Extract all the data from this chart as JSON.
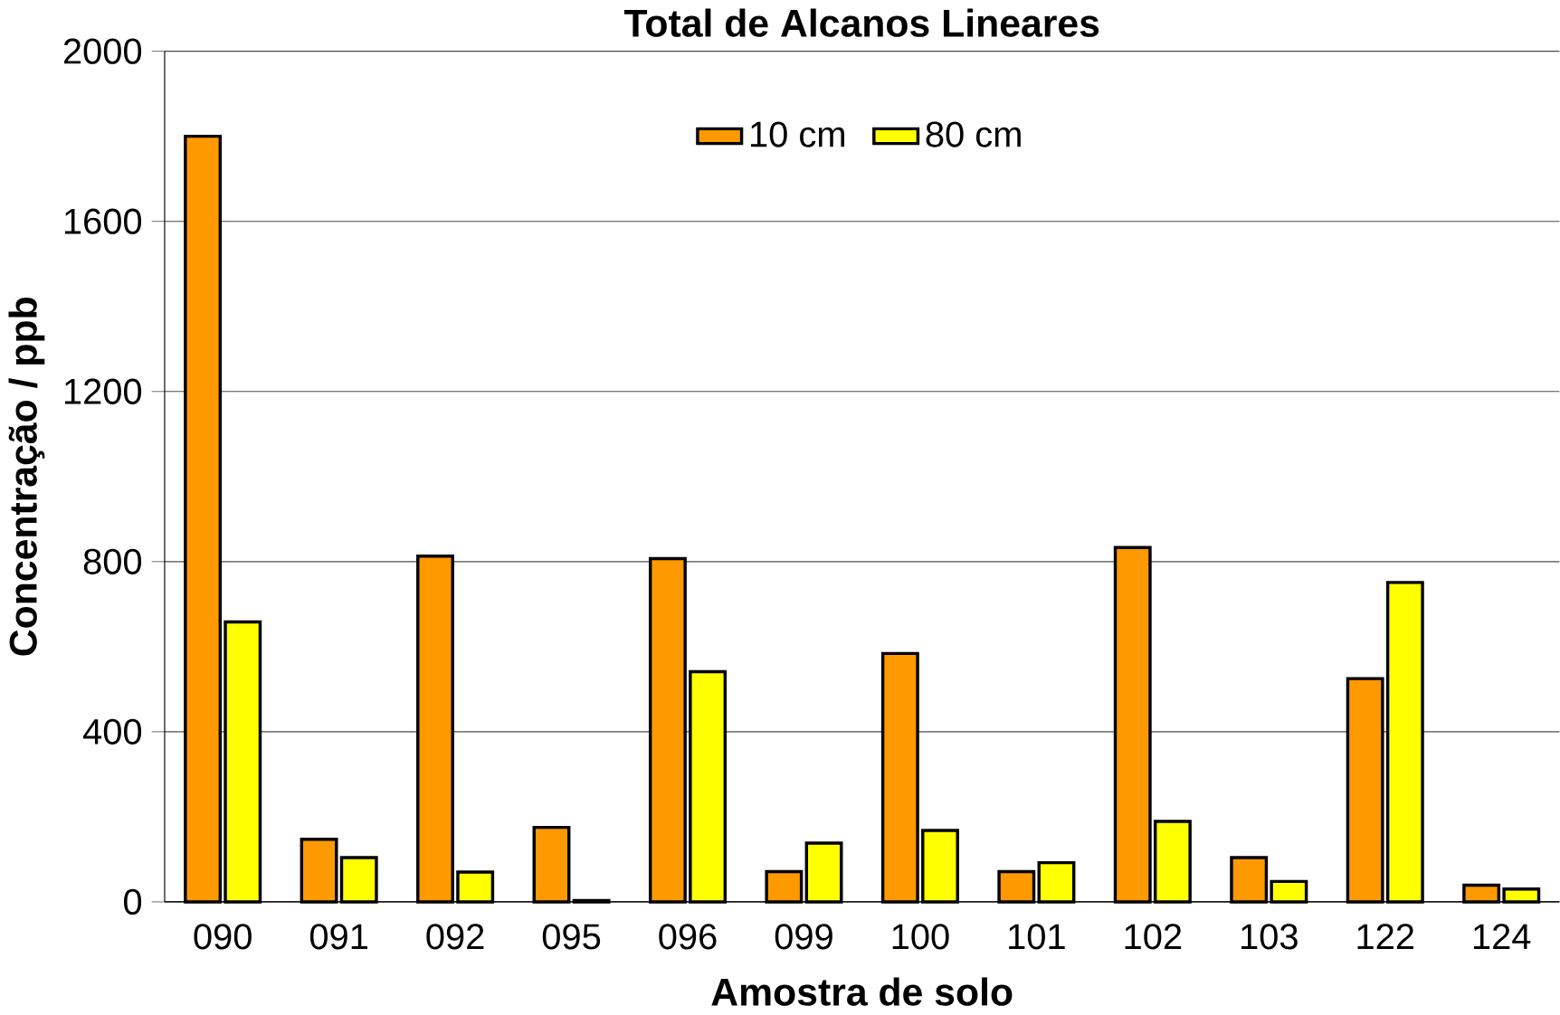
{
  "chart_data": {
    "type": "bar",
    "title": "Total de Alcanos Lineares",
    "xlabel": "Amostra de solo",
    "ylabel": "Concentração / ppb",
    "categories": [
      "090",
      "091",
      "092",
      "095",
      "096",
      "099",
      "100",
      "101",
      "102",
      "103",
      "122",
      "124"
    ],
    "series": [
      {
        "name": "10 cm",
        "color": "#ff9900",
        "values": [
          1800,
          147,
          813,
          175,
          807,
          71,
          584,
          71,
          833,
          104,
          525,
          39
        ]
      },
      {
        "name": "80 cm",
        "color": "#ffff00",
        "values": [
          658,
          104,
          70,
          3,
          541,
          138,
          168,
          92,
          189,
          48,
          751,
          30
        ]
      }
    ],
    "ylim": [
      0,
      2000
    ],
    "yticks": [
      0,
      400,
      800,
      1200,
      1600,
      2000
    ],
    "grid": "y",
    "legend": "top"
  }
}
